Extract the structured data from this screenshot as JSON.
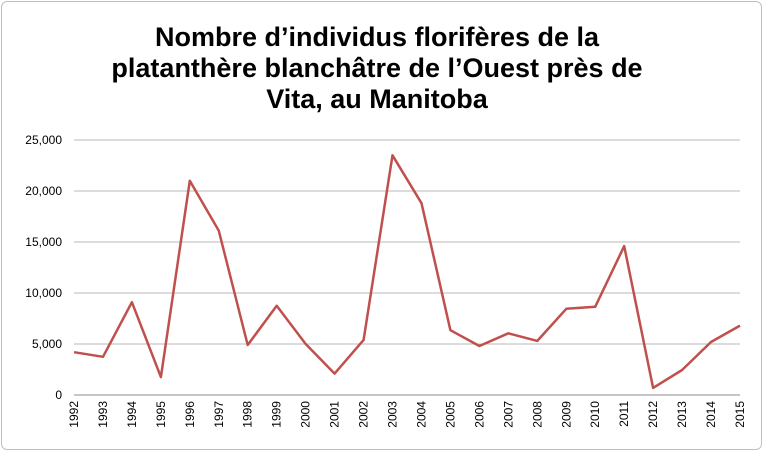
{
  "chart_data": {
    "type": "line",
    "title": "Nombre d’individus florifères de la platanthère blanchâtre de l’Ouest près de Vita, au Manitoba",
    "xlabel": "",
    "ylabel": "",
    "ylim": [
      0,
      25000
    ],
    "y_ticks": [
      0,
      5000,
      10000,
      15000,
      20000,
      25000
    ],
    "y_tick_labels": [
      "0",
      "5,000",
      "10,000",
      "15,000",
      "20,000",
      "25,000"
    ],
    "grid": true,
    "legend": "none",
    "categories": [
      "1992",
      "1993",
      "1994",
      "1995",
      "1996",
      "1997",
      "1998",
      "1999",
      "2000",
      "2001",
      "2002",
      "2003",
      "2004",
      "2005",
      "2006",
      "2007",
      "2008",
      "2009",
      "2010",
      "2011",
      "2012",
      "2013",
      "2014",
      "2015"
    ],
    "series": [
      {
        "values": [
          4200,
          3750,
          9100,
          1750,
          21000,
          16100,
          4900,
          8750,
          5000,
          2100,
          5400,
          23500,
          18800,
          6350,
          4800,
          6050,
          5300,
          8450,
          8650,
          14600,
          700,
          2450,
          5200,
          6800
        ],
        "color": "#c0504d"
      }
    ]
  }
}
